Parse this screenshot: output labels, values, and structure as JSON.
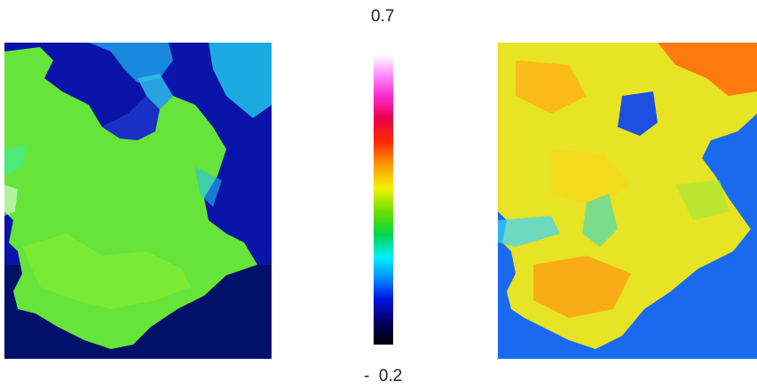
{
  "colorbar": {
    "max_label": "0.7",
    "min_label": "-  0.2",
    "colors_top_to_bottom": [
      "#ffffff",
      "#ff9cff",
      "#ff2ad4",
      "#e8004a",
      "#ff2a00",
      "#ff9a00",
      "#f2f200",
      "#6ee000",
      "#00d64a",
      "#00f0ff",
      "#0090ff",
      "#0016e6",
      "#000066",
      "#000000"
    ]
  },
  "left_image": {
    "description_colors": {
      "water": "#0a1bb0",
      "land": "#68e83a",
      "mixed": "#20b8f0"
    }
  },
  "right_image": {
    "description_colors": {
      "water": "#1a6cf0",
      "land": "#e8e622",
      "hot": "#ff7a00"
    }
  }
}
